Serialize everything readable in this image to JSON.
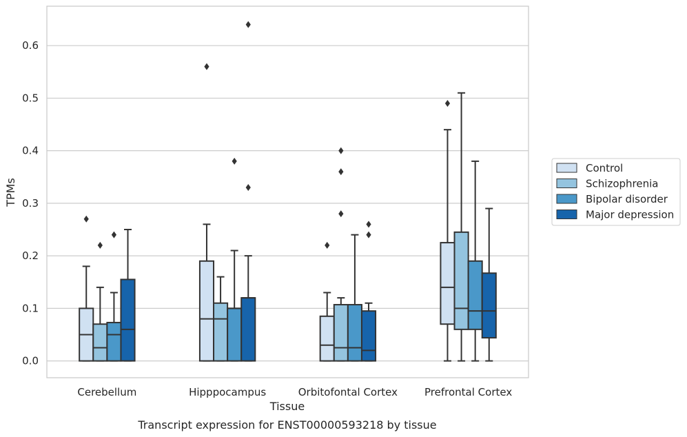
{
  "caption": "Transcript expression for ENST00000593218 by tissue",
  "colors": {
    "Control": "#d0e1f2",
    "Schizophrenia": "#94c4df",
    "Bipolar disorder": "#4a98c9",
    "Major depression": "#1764ab",
    "box_edge": "#333333",
    "grid": "#cccccc",
    "frame": "#cccccc"
  },
  "chart_data": {
    "type": "box",
    "title": "",
    "xlabel": "Tissue",
    "ylabel": "TPMs",
    "ylim": [
      -0.032,
      0.675
    ],
    "yticks": [
      "0.0",
      "0.1",
      "0.2",
      "0.3",
      "0.4",
      "0.5",
      "0.6"
    ],
    "grid": true,
    "legend_position": "right-outside",
    "categories": [
      "Cerebellum",
      "Hipppocampus",
      "Orbitofontal Cortex",
      "Prefrontal Cortex"
    ],
    "series": [
      {
        "name": "Control",
        "boxes": [
          {
            "whislo": 0.0,
            "q1": 0.0,
            "med": 0.05,
            "q3": 0.1,
            "whishi": 0.18,
            "fliers": [
              0.27
            ]
          },
          {
            "whislo": 0.0,
            "q1": 0.0,
            "med": 0.08,
            "q3": 0.19,
            "whishi": 0.26,
            "fliers": [
              0.56
            ]
          },
          {
            "whislo": 0.0,
            "q1": 0.0,
            "med": 0.03,
            "q3": 0.085,
            "whishi": 0.13,
            "fliers": [
              0.22
            ]
          },
          {
            "whislo": 0.0,
            "q1": 0.07,
            "med": 0.14,
            "q3": 0.225,
            "whishi": 0.44,
            "fliers": [
              0.49
            ]
          }
        ]
      },
      {
        "name": "Schizophrenia",
        "boxes": [
          {
            "whislo": 0.0,
            "q1": 0.0,
            "med": 0.025,
            "q3": 0.07,
            "whishi": 0.14,
            "fliers": [
              0.22
            ]
          },
          {
            "whislo": 0.0,
            "q1": 0.0,
            "med": 0.08,
            "q3": 0.11,
            "whishi": 0.16,
            "fliers": []
          },
          {
            "whislo": 0.0,
            "q1": 0.0,
            "med": 0.025,
            "q3": 0.107,
            "whishi": 0.12,
            "fliers": [
              0.28,
              0.36,
              0.4
            ]
          },
          {
            "whislo": 0.0,
            "q1": 0.06,
            "med": 0.1,
            "q3": 0.245,
            "whishi": 0.51,
            "fliers": []
          }
        ]
      },
      {
        "name": "Bipolar disorder",
        "boxes": [
          {
            "whislo": 0.0,
            "q1": 0.0,
            "med": 0.05,
            "q3": 0.073,
            "whishi": 0.13,
            "fliers": [
              0.24
            ]
          },
          {
            "whislo": 0.0,
            "q1": 0.0,
            "med": 0.1,
            "q3": 0.1,
            "whishi": 0.21,
            "fliers": [
              0.38
            ]
          },
          {
            "whislo": 0.0,
            "q1": 0.0,
            "med": 0.025,
            "q3": 0.107,
            "whishi": 0.24,
            "fliers": []
          },
          {
            "whislo": 0.0,
            "q1": 0.06,
            "med": 0.095,
            "q3": 0.19,
            "whishi": 0.38,
            "fliers": []
          }
        ]
      },
      {
        "name": "Major depression",
        "boxes": [
          {
            "whislo": 0.0,
            "q1": 0.0,
            "med": 0.06,
            "q3": 0.155,
            "whishi": 0.25,
            "fliers": []
          },
          {
            "whislo": 0.0,
            "q1": 0.0,
            "med": 0.12,
            "q3": 0.12,
            "whishi": 0.2,
            "fliers": [
              0.33,
              0.64
            ]
          },
          {
            "whislo": 0.0,
            "q1": 0.0,
            "med": 0.02,
            "q3": 0.095,
            "whishi": 0.11,
            "fliers": [
              0.24,
              0.26
            ]
          },
          {
            "whislo": 0.0,
            "q1": 0.044,
            "med": 0.095,
            "q3": 0.167,
            "whishi": 0.29,
            "fliers": []
          }
        ]
      }
    ]
  }
}
